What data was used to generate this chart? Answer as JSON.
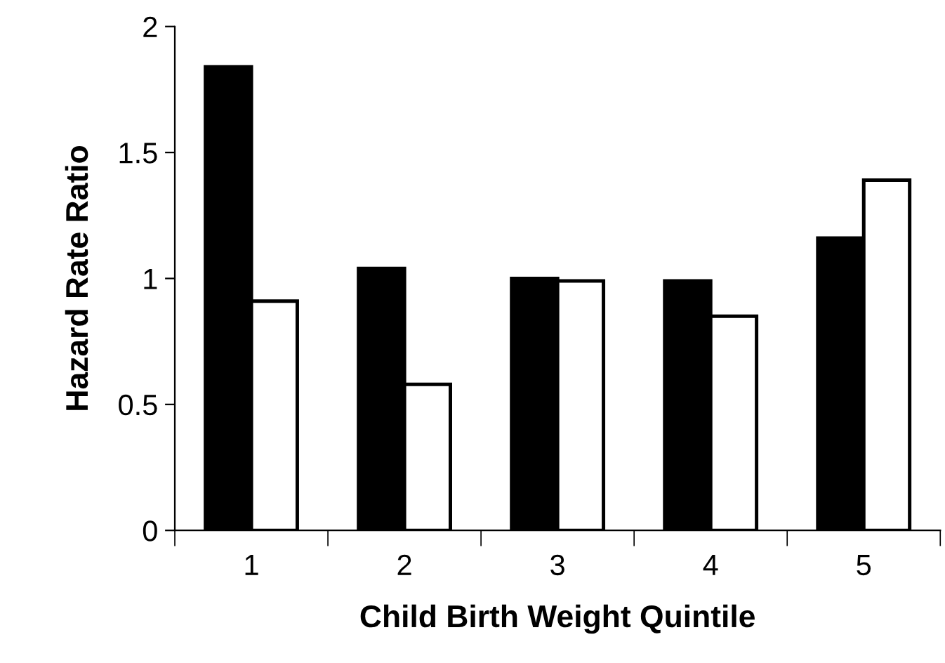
{
  "chart_data": {
    "type": "bar",
    "xlabel": "Child Birth Weight Quintile",
    "ylabel": "Hazard Rate Ratio",
    "categories": [
      "1",
      "2",
      "3",
      "4",
      "5"
    ],
    "series": [
      {
        "color": "#000000",
        "values": [
          1.84,
          1.04,
          1.0,
          0.99,
          1.16
        ]
      },
      {
        "color": "#ffffff",
        "values": [
          0.91,
          0.58,
          0.99,
          0.85,
          1.39
        ]
      }
    ],
    "ylim": [
      0,
      2
    ],
    "yticks": [
      0,
      0.5,
      1,
      1.5,
      2
    ],
    "grid": false,
    "legend": false
  }
}
